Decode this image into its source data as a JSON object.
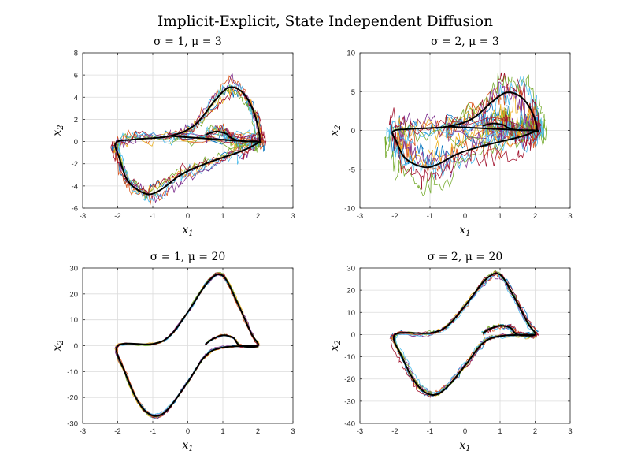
{
  "figure_title": "Implicit-Explicit, State Independent Diffusion",
  "series_colors": [
    "#0072BD",
    "#D95319",
    "#EDB120",
    "#7E2F8E",
    "#77AC30",
    "#4DBEEE",
    "#A2142F"
  ],
  "mean_color": "#000000",
  "chart_data": [
    {
      "type": "line",
      "title": "σ = 1, μ = 3",
      "xlabel": "x1",
      "ylabel": "x2",
      "xlim": [
        -3,
        3
      ],
      "ylim": [
        -6,
        8
      ],
      "xticks": [
        -3,
        -2,
        -1,
        0,
        1,
        2,
        3
      ],
      "yticks": [
        -6,
        -4,
        -2,
        0,
        2,
        4,
        6,
        8
      ],
      "grid": true,
      "mu": 3,
      "sigma": 1,
      "mean_path": [
        [
          0.5,
          0.6
        ],
        [
          0.8,
          0.9
        ],
        [
          1.1,
          0.7
        ],
        [
          1.2,
          0.4
        ],
        [
          1.5,
          0.05
        ],
        [
          2.0,
          0.0
        ],
        [
          1.9,
          -0.3
        ],
        [
          1.5,
          -0.9
        ],
        [
          0.5,
          -2.0
        ],
        [
          -0.2,
          -3.0
        ],
        [
          -0.8,
          -4.4
        ],
        [
          -1.2,
          -4.7
        ],
        [
          -1.7,
          -3.6
        ],
        [
          -1.95,
          -1.5
        ],
        [
          -2.05,
          -0.1
        ],
        [
          -1.5,
          0.2
        ],
        [
          -0.5,
          0.5
        ],
        [
          0.2,
          1.5
        ],
        [
          0.8,
          3.8
        ],
        [
          1.2,
          4.9
        ],
        [
          1.6,
          4.3
        ],
        [
          1.9,
          2.5
        ],
        [
          2.05,
          0.2
        ],
        [
          1.85,
          0.0
        ],
        [
          -0.5,
          0.5
        ]
      ]
    },
    {
      "type": "line",
      "title": "σ = 2, μ = 3",
      "xlabel": "x1",
      "ylabel": "x2",
      "xlim": [
        -3,
        3
      ],
      "ylim": [
        -10,
        10
      ],
      "xticks": [
        -3,
        -2,
        -1,
        0,
        1,
        2,
        3
      ],
      "yticks": [
        -10,
        -5,
        0,
        5,
        10
      ],
      "grid": true,
      "mu": 3,
      "sigma": 2,
      "mean_path": [
        [
          0.5,
          0.6
        ],
        [
          0.8,
          0.9
        ],
        [
          1.1,
          0.7
        ],
        [
          1.2,
          0.4
        ],
        [
          1.5,
          0.05
        ],
        [
          2.0,
          0.0
        ],
        [
          1.9,
          -0.3
        ],
        [
          1.5,
          -0.9
        ],
        [
          0.5,
          -2.0
        ],
        [
          -0.2,
          -3.0
        ],
        [
          -0.8,
          -4.4
        ],
        [
          -1.2,
          -4.7
        ],
        [
          -1.7,
          -3.6
        ],
        [
          -1.95,
          -1.5
        ],
        [
          -2.05,
          -0.1
        ],
        [
          -1.5,
          0.2
        ],
        [
          -0.5,
          0.5
        ],
        [
          0.2,
          1.5
        ],
        [
          0.8,
          3.8
        ],
        [
          1.2,
          4.9
        ],
        [
          1.6,
          4.3
        ],
        [
          1.9,
          2.5
        ],
        [
          2.05,
          0.2
        ],
        [
          1.85,
          0.0
        ],
        [
          -0.5,
          0.5
        ]
      ]
    },
    {
      "type": "line",
      "title": "σ = 1, μ = 20",
      "xlabel": "x1",
      "ylabel": "x2",
      "xlim": [
        -3,
        3
      ],
      "ylim": [
        -30,
        30
      ],
      "xticks": [
        -3,
        -2,
        -1,
        0,
        1,
        2,
        3
      ],
      "yticks": [
        -30,
        -20,
        -10,
        0,
        10,
        20,
        30
      ],
      "grid": true,
      "mu": 20,
      "sigma": 1,
      "mean_path": [
        [
          0.5,
          0.5
        ],
        [
          0.7,
          2.5
        ],
        [
          1.0,
          4.0
        ],
        [
          1.3,
          3.0
        ],
        [
          1.5,
          0.0
        ],
        [
          2.0,
          0.0
        ],
        [
          1.8,
          5.0
        ],
        [
          1.4,
          17.0
        ],
        [
          1.0,
          27.0
        ],
        [
          0.6,
          25.0
        ],
        [
          0.0,
          13.0
        ],
        [
          -0.5,
          4.0
        ],
        [
          -1.0,
          0.7
        ],
        [
          -2.0,
          0.0
        ],
        [
          -1.8,
          -10.0
        ],
        [
          -1.4,
          -22.0
        ],
        [
          -1.0,
          -27.0
        ],
        [
          -0.6,
          -25.0
        ],
        [
          0.0,
          -14.0
        ],
        [
          0.5,
          -4.0
        ],
        [
          1.0,
          -0.7
        ],
        [
          2.0,
          0.0
        ]
      ]
    },
    {
      "type": "line",
      "title": "σ = 2, μ = 20",
      "xlabel": "x1",
      "ylabel": "x2",
      "xlim": [
        -3,
        3
      ],
      "ylim": [
        -40,
        30
      ],
      "xticks": [
        -3,
        -2,
        -1,
        0,
        1,
        2,
        3
      ],
      "yticks": [
        -40,
        -30,
        -20,
        -10,
        0,
        10,
        20,
        30
      ],
      "grid": true,
      "mu": 20,
      "sigma": 2,
      "mean_path": [
        [
          0.5,
          0.5
        ],
        [
          0.7,
          2.5
        ],
        [
          1.0,
          4.0
        ],
        [
          1.3,
          3.0
        ],
        [
          1.5,
          0.0
        ],
        [
          2.0,
          0.0
        ],
        [
          1.8,
          5.0
        ],
        [
          1.4,
          17.0
        ],
        [
          1.0,
          27.0
        ],
        [
          0.6,
          25.0
        ],
        [
          0.0,
          13.0
        ],
        [
          -0.5,
          4.0
        ],
        [
          -1.0,
          0.7
        ],
        [
          -2.0,
          0.0
        ],
        [
          -1.8,
          -10.0
        ],
        [
          -1.4,
          -22.0
        ],
        [
          -1.0,
          -27.0
        ],
        [
          -0.6,
          -25.0
        ],
        [
          0.0,
          -14.0
        ],
        [
          0.5,
          -4.0
        ],
        [
          1.0,
          -0.7
        ],
        [
          2.0,
          0.0
        ]
      ]
    }
  ]
}
